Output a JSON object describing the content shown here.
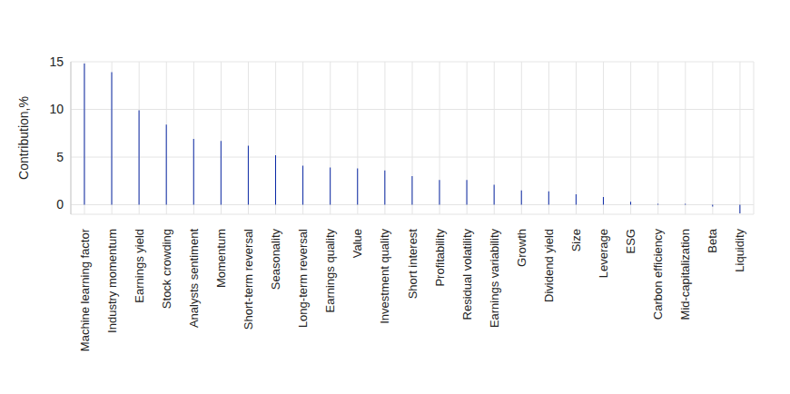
{
  "chart_data": {
    "type": "bar",
    "y_label": "Contribution,%",
    "categories": [
      "Machine learning factor",
      "Industry momentum",
      "Earnings yield",
      "Stock crowding",
      "Analysts sentiment",
      "Momentum",
      "Short-term reversal",
      "Seasonality",
      "Long-term reversal",
      "Earnings quality",
      "Value",
      "Investment quality",
      "Short interest",
      "Profitability",
      "Residual volatility",
      "Earnings variability",
      "Growth",
      "Dividend yield",
      "Size",
      "Leverage",
      "ESG",
      "Carbon efficiency",
      "Mid-capitalization",
      "Beta",
      "Liquidity"
    ],
    "values": [
      14.8,
      13.9,
      9.9,
      8.4,
      6.9,
      6.7,
      6.2,
      5.2,
      4.1,
      3.9,
      3.8,
      3.6,
      3.0,
      2.6,
      2.6,
      2.1,
      1.5,
      1.4,
      1.1,
      0.8,
      0.3,
      0.1,
      0.1,
      -0.2,
      -0.9
    ],
    "color": "#0a28a5",
    "ylim": [
      -1,
      15
    ],
    "yticks": [
      0,
      5,
      10,
      15
    ],
    "grid": true
  }
}
